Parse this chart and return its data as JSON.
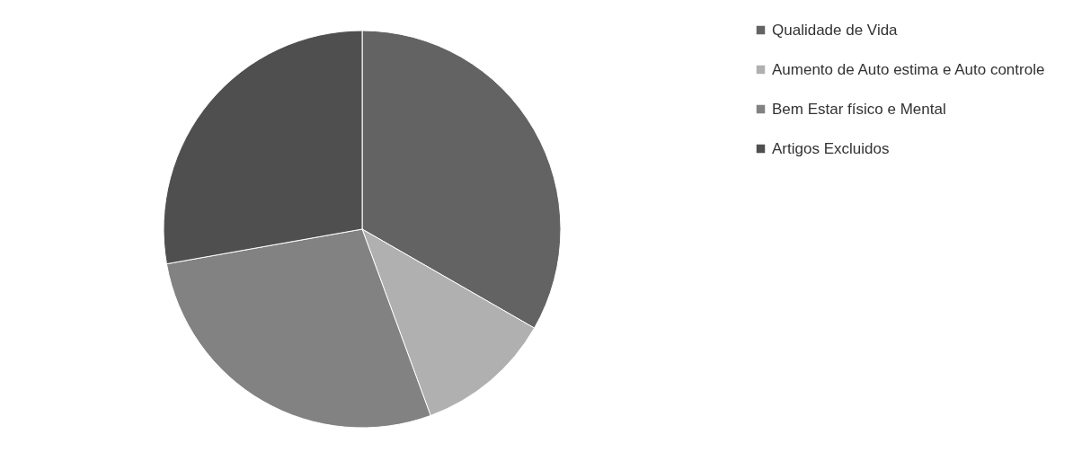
{
  "chart_data": {
    "type": "pie",
    "categories": [
      "Qualidade de Vida",
      "Aumento de Auto estima e Auto controle",
      "Bem Estar físico e Mental",
      "Artigos Excluidos"
    ],
    "values": [
      33.3,
      11.1,
      27.8,
      27.8
    ],
    "colors": [
      "#636363",
      "#b0b0b0",
      "#828282",
      "#4f4f4f"
    ],
    "legend": "right"
  }
}
